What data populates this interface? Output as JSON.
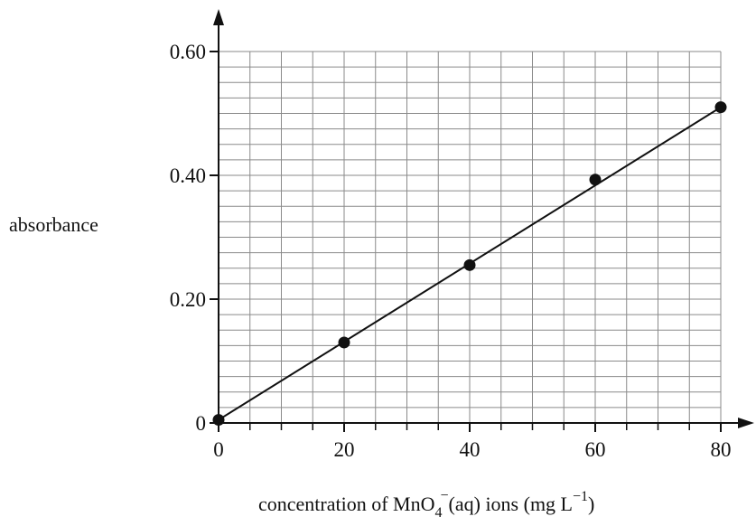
{
  "chart_data": {
    "type": "line",
    "title": "",
    "xlabel": {
      "prefix": "concentration of MnO",
      "subscript": "4",
      "superscript": "−",
      "middle": "(aq) ions (mg L",
      "superscript2": "−1",
      "suffix": ")"
    },
    "ylabel": "absorbance",
    "xlim": [
      0,
      80
    ],
    "ylim": [
      0,
      0.6
    ],
    "x_ticks": [
      {
        "value": 0,
        "label": "0"
      },
      {
        "value": 20,
        "label": "20"
      },
      {
        "value": 40,
        "label": "40"
      },
      {
        "value": 60,
        "label": "60"
      },
      {
        "value": 80,
        "label": "80"
      }
    ],
    "y_ticks": [
      {
        "value": 0,
        "label": "0"
      },
      {
        "value": 0.2,
        "label": "0.20"
      },
      {
        "value": 0.4,
        "label": "0.40"
      },
      {
        "value": 0.6,
        "label": "0.60"
      }
    ],
    "grid": true,
    "x_minor_step": 5,
    "y_minor_step": 0.025,
    "series": [
      {
        "points": [
          {
            "x": 0,
            "y": 0.005
          },
          {
            "x": 20,
            "y": 0.13
          },
          {
            "x": 40,
            "y": 0.255
          },
          {
            "x": 60,
            "y": 0.393
          },
          {
            "x": 80,
            "y": 0.51
          }
        ],
        "fit_line": [
          {
            "x": 0,
            "y": 0.005
          },
          {
            "x": 80,
            "y": 0.51
          }
        ]
      }
    ],
    "colors": {
      "axis": "#111111",
      "grid": "#8a8a8a",
      "line": "#111111",
      "marker": "#111111"
    }
  }
}
